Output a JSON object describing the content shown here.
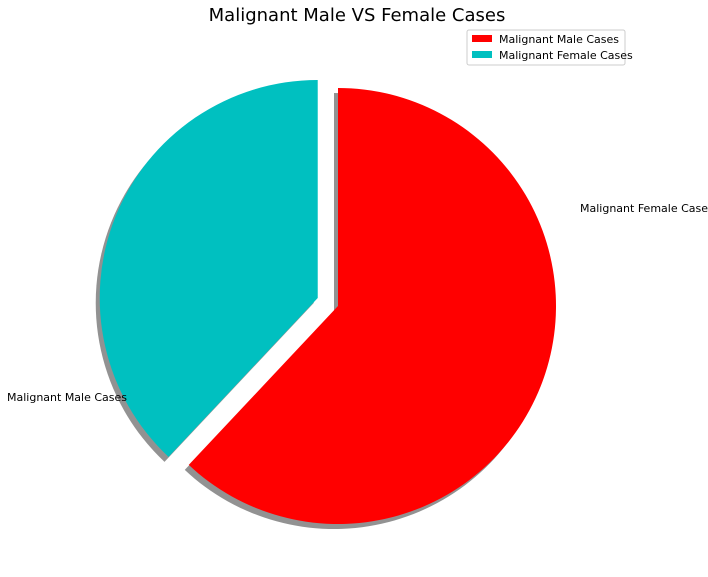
{
  "chart_data": {
    "type": "pie",
    "title": "Malignant Male VS Female Cases",
    "categories": [
      "Malignant Male Cases",
      "Malignant Female Cases"
    ],
    "values": [
      62,
      38
    ],
    "colors": [
      "#ff0000",
      "#00c0c0"
    ],
    "explode": [
      0,
      0.1
    ],
    "shadow": true,
    "legend_placement": "top-right"
  }
}
